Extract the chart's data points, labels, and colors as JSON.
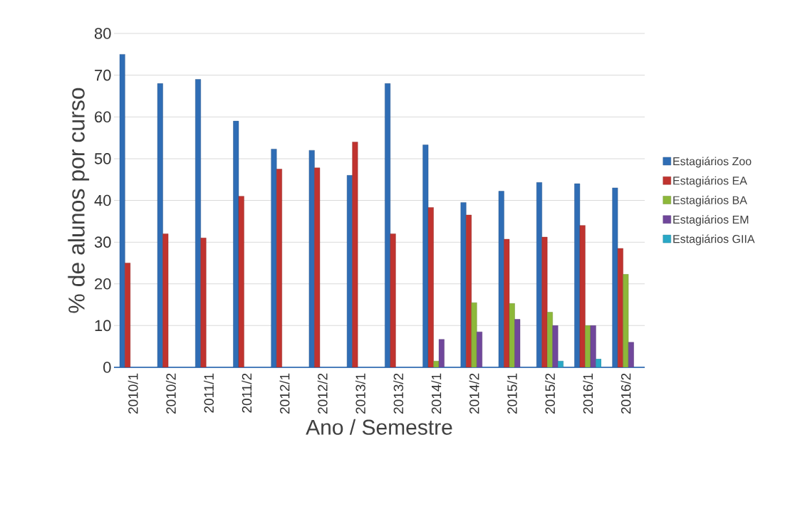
{
  "chart_data": {
    "type": "bar",
    "xlabel": "Ano / Semestre",
    "ylabel": "% de alunos por curso",
    "categories": [
      "2010/1",
      "2010/2",
      "2011/1",
      "2011/2",
      "2012/1",
      "2012/2",
      "2013/1",
      "2013/2",
      "2014/1",
      "2014/2",
      "2015/1",
      "2015/2",
      "2016/1",
      "2016/2"
    ],
    "series": [
      {
        "name": "Estagiários Zoo",
        "color": "#2f6db5",
        "values": [
          75,
          68,
          69,
          59,
          52.3,
          52,
          46,
          68,
          53.3,
          39.5,
          42.2,
          44.3,
          44,
          43
        ]
      },
      {
        "name": "Estagiários EA",
        "color": "#c0332f",
        "values": [
          25,
          32,
          31,
          41,
          47.5,
          47.8,
          54,
          32,
          38.3,
          36.5,
          30.7,
          31.2,
          34,
          28.5
        ]
      },
      {
        "name": "Estagiários BA",
        "color": "#8db83a",
        "values": [
          null,
          null,
          null,
          null,
          null,
          null,
          null,
          null,
          1.5,
          15.5,
          15.3,
          13.2,
          10,
          22.3
        ]
      },
      {
        "name": "Estagiários EM",
        "color": "#70479b",
        "values": [
          null,
          null,
          null,
          null,
          null,
          null,
          null,
          null,
          6.7,
          8.5,
          11.5,
          10,
          10,
          6
        ]
      },
      {
        "name": "Estagiários GIIA",
        "color": "#2aa8c6",
        "values": [
          null,
          null,
          null,
          null,
          null,
          null,
          null,
          null,
          null,
          null,
          null,
          1.5,
          2,
          null
        ]
      }
    ],
    "ylim": [
      0,
      80
    ],
    "yticks": [
      0,
      10,
      20,
      30,
      40,
      50,
      60,
      70,
      80
    ],
    "grid": "y",
    "legend": "right"
  }
}
